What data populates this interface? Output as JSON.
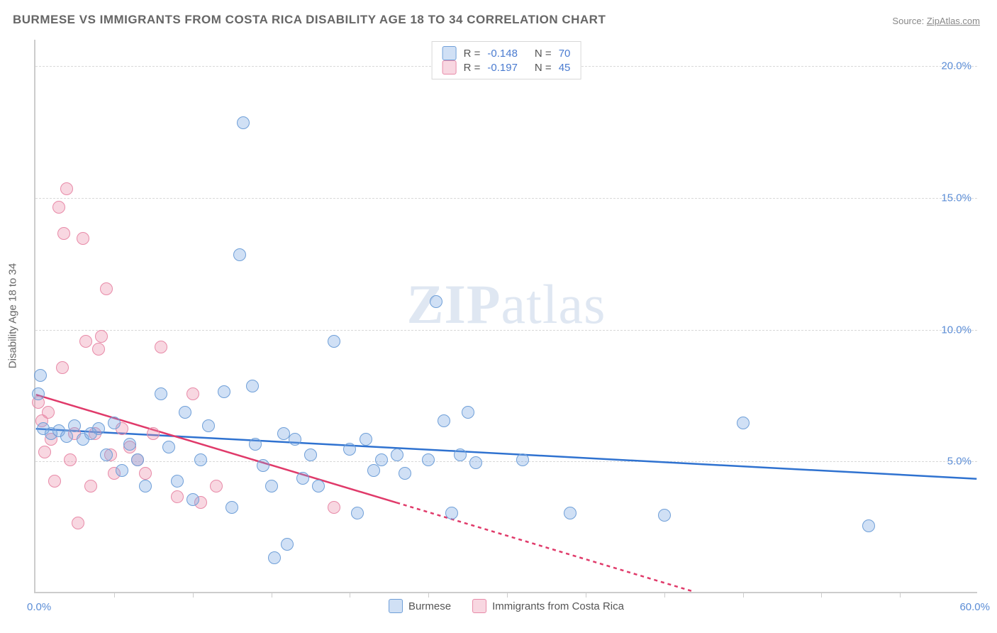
{
  "title": "BURMESE VS IMMIGRANTS FROM COSTA RICA DISABILITY AGE 18 TO 34 CORRELATION CHART",
  "source_label": "Source:",
  "source_name": "ZipAtlas.com",
  "watermark": "ZIPatlas",
  "yaxis_title": "Disability Age 18 to 34",
  "xlim": [
    0,
    60
  ],
  "ylim": [
    0,
    21
  ],
  "xtick_positions": [
    5,
    10,
    15,
    20,
    25,
    30,
    35,
    40,
    45,
    50,
    55
  ],
  "yticks": [
    5,
    10,
    15,
    20
  ],
  "ytick_labels": [
    "5.0%",
    "10.0%",
    "15.0%",
    "20.0%"
  ],
  "xlabel_min": "0.0%",
  "xlabel_max": "60.0%",
  "grid_color": "#d8d8d8",
  "axis_color": "#cccccc",
  "background_color": "#ffffff",
  "series": {
    "burmese": {
      "label": "Burmese",
      "fill": "rgba(120,165,225,0.35)",
      "stroke": "#6f9fd8",
      "line_color": "#2f72d0",
      "R": "-0.148",
      "N": "70",
      "marker_r": 9,
      "trend": {
        "x1": 0,
        "y1": 6.2,
        "x2": 60,
        "y2": 4.3,
        "solid_to_x": 60
      },
      "points": [
        [
          0.3,
          8.2
        ],
        [
          0.2,
          7.5
        ],
        [
          0.5,
          6.2
        ],
        [
          1.0,
          6.0
        ],
        [
          1.5,
          6.1
        ],
        [
          2.0,
          5.9
        ],
        [
          2.5,
          6.3
        ],
        [
          3.0,
          5.8
        ],
        [
          3.5,
          6.0
        ],
        [
          4.0,
          6.2
        ],
        [
          4.5,
          5.2
        ],
        [
          5.0,
          6.4
        ],
        [
          5.5,
          4.6
        ],
        [
          6.0,
          5.6
        ],
        [
          6.5,
          5.0
        ],
        [
          7.0,
          4.0
        ],
        [
          8.0,
          7.5
        ],
        [
          8.5,
          5.5
        ],
        [
          9.0,
          4.2
        ],
        [
          9.5,
          6.8
        ],
        [
          10.0,
          3.5
        ],
        [
          10.5,
          5.0
        ],
        [
          11.0,
          6.3
        ],
        [
          12.0,
          7.6
        ],
        [
          12.5,
          3.2
        ],
        [
          13.0,
          12.8
        ],
        [
          13.2,
          17.8
        ],
        [
          13.8,
          7.8
        ],
        [
          14.0,
          5.6
        ],
        [
          14.5,
          4.8
        ],
        [
          15.0,
          4.0
        ],
        [
          15.2,
          1.3
        ],
        [
          15.8,
          6.0
        ],
        [
          16.0,
          1.8
        ],
        [
          16.5,
          5.8
        ],
        [
          17.0,
          4.3
        ],
        [
          17.5,
          5.2
        ],
        [
          18.0,
          4.0
        ],
        [
          19.0,
          9.5
        ],
        [
          20.0,
          5.4
        ],
        [
          20.5,
          3.0
        ],
        [
          21.0,
          5.8
        ],
        [
          21.5,
          4.6
        ],
        [
          22.0,
          5.0
        ],
        [
          23.0,
          5.2
        ],
        [
          23.5,
          4.5
        ],
        [
          25.0,
          5.0
        ],
        [
          25.5,
          11.0
        ],
        [
          26.0,
          6.5
        ],
        [
          26.5,
          3.0
        ],
        [
          27.0,
          5.2
        ],
        [
          27.5,
          6.8
        ],
        [
          28.0,
          4.9
        ],
        [
          31.0,
          5.0
        ],
        [
          34.0,
          3.0
        ],
        [
          40.0,
          2.9
        ],
        [
          45.0,
          6.4
        ],
        [
          53.0,
          2.5
        ]
      ]
    },
    "costarica": {
      "label": "Immigrants from Costa Rica",
      "fill": "rgba(235,140,170,0.35)",
      "stroke": "#e88aa8",
      "line_color": "#e03a6a",
      "R": "-0.197",
      "N": "45",
      "marker_r": 9,
      "trend": {
        "x1": 0,
        "y1": 7.5,
        "x2": 42,
        "y2": 0,
        "solid_to_x": 23
      },
      "points": [
        [
          0.2,
          7.2
        ],
        [
          0.4,
          6.5
        ],
        [
          0.6,
          5.3
        ],
        [
          0.8,
          6.8
        ],
        [
          1.0,
          5.8
        ],
        [
          1.2,
          4.2
        ],
        [
          1.5,
          14.6
        ],
        [
          1.7,
          8.5
        ],
        [
          1.8,
          13.6
        ],
        [
          2.0,
          15.3
        ],
        [
          2.2,
          5.0
        ],
        [
          2.5,
          6.0
        ],
        [
          2.7,
          2.6
        ],
        [
          3.0,
          13.4
        ],
        [
          3.2,
          9.5
        ],
        [
          3.5,
          4.0
        ],
        [
          3.8,
          6.0
        ],
        [
          4.0,
          9.2
        ],
        [
          4.2,
          9.7
        ],
        [
          4.5,
          11.5
        ],
        [
          4.8,
          5.2
        ],
        [
          5.0,
          4.5
        ],
        [
          5.5,
          6.2
        ],
        [
          6.0,
          5.5
        ],
        [
          6.5,
          5.0
        ],
        [
          7.0,
          4.5
        ],
        [
          7.5,
          6.0
        ],
        [
          8.0,
          9.3
        ],
        [
          9.0,
          3.6
        ],
        [
          10.0,
          7.5
        ],
        [
          10.5,
          3.4
        ],
        [
          11.5,
          4.0
        ],
        [
          19.0,
          3.2
        ]
      ]
    }
  }
}
